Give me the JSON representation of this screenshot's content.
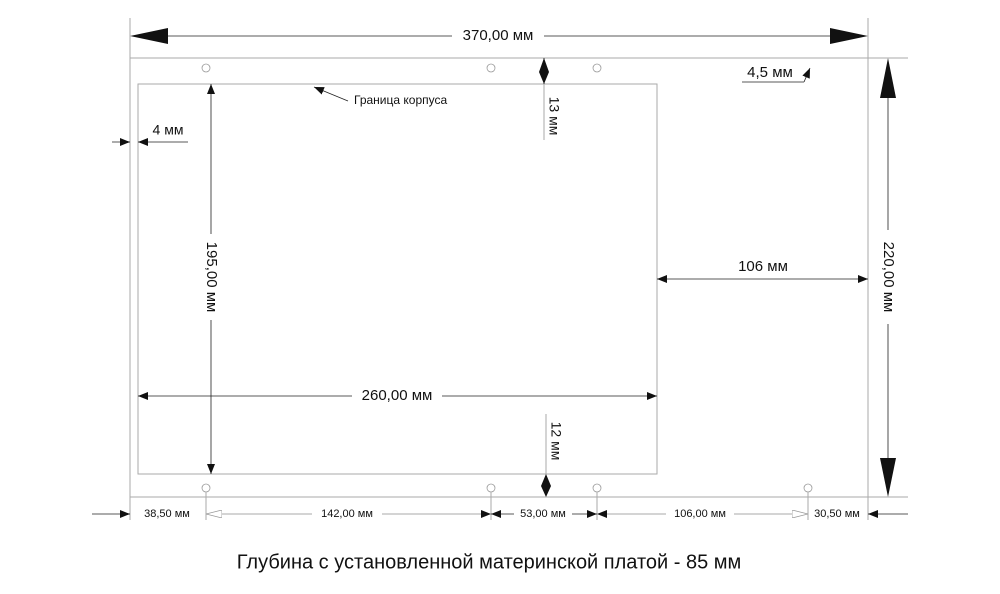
{
  "dimensions": {
    "overall_width": "370,00 мм",
    "overall_height": "220,00 мм",
    "hole_diameter": "4,5 мм",
    "case_boundary": "Граница корпуса",
    "top_margin": "13 мм",
    "left_margin": "4 мм",
    "board_height": "195,00 мм",
    "board_width": "260,00 мм",
    "right_gap": "106 мм",
    "bottom_margin": "12 мм",
    "holes": [
      "38,50 мм",
      "142,00 мм",
      "53,00 мм",
      "106,00 мм",
      "30,50 мм"
    ]
  },
  "caption": "Глубина с установленной материнской платой - 85 мм"
}
